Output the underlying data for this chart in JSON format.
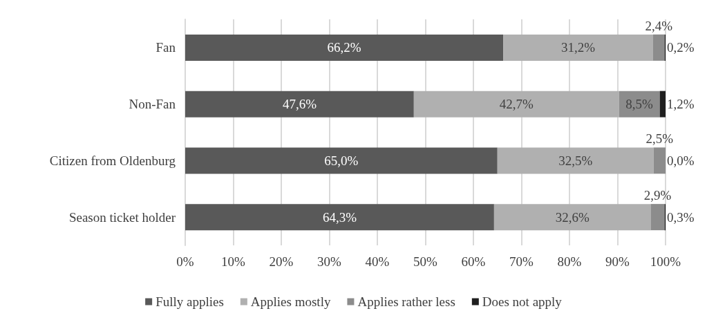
{
  "chart_data": {
    "type": "bar",
    "orientation": "horizontal",
    "stacked": true,
    "categories": [
      "Fan",
      "Non-Fan",
      "Citizen from Oldenburg",
      "Season ticket holder"
    ],
    "series": [
      {
        "name": "Fully applies",
        "color": "#595959",
        "values": [
          66.2,
          47.6,
          65.0,
          64.3
        ],
        "value_labels": [
          "66,2%",
          "47,6%",
          "65,0%",
          "64,3%"
        ]
      },
      {
        "name": "Applies mostly",
        "color": "#b0b0b0",
        "values": [
          31.2,
          42.7,
          32.5,
          32.6
        ],
        "value_labels": [
          "31,2%",
          "42,7%",
          "32,5%",
          "32,6%"
        ]
      },
      {
        "name": "Applies rather less",
        "color": "#8c8c8c",
        "values": [
          2.4,
          8.5,
          2.5,
          2.9
        ],
        "value_labels": [
          "2,4%",
          "8,5%",
          "2,5%",
          "2,9%"
        ]
      },
      {
        "name": "Does not apply",
        "color": "#1f1f1f",
        "values": [
          0.2,
          1.2,
          0.0,
          0.3
        ],
        "value_labels": [
          "0,2%",
          "1,2%",
          "0,0%",
          "0,3%"
        ]
      }
    ],
    "xlim": [
      0,
      100
    ],
    "xticks": [
      {
        "value": 0,
        "label": "0%"
      },
      {
        "value": 10,
        "label": "10%"
      },
      {
        "value": 20,
        "label": "20%"
      },
      {
        "value": 30,
        "label": "30%"
      },
      {
        "value": 40,
        "label": "40%"
      },
      {
        "value": 50,
        "label": "50%"
      },
      {
        "value": 60,
        "label": "60%"
      },
      {
        "value": 70,
        "label": "70%"
      },
      {
        "value": 80,
        "label": "80%"
      },
      {
        "value": 90,
        "label": "90%"
      },
      {
        "value": 100,
        "label": "100%"
      }
    ],
    "grid": "x",
    "legend": "bottom"
  }
}
